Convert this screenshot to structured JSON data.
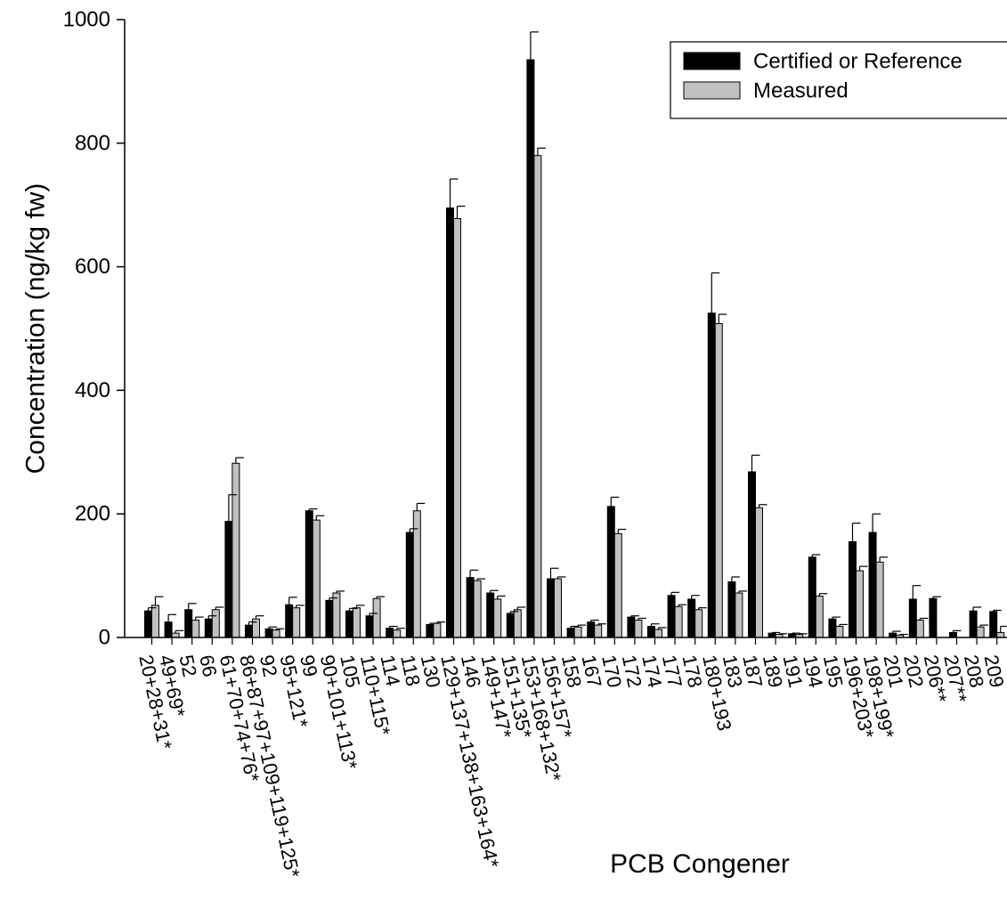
{
  "chart_data": {
    "type": "bar",
    "title": "",
    "xlabel": "PCB Congener",
    "ylabel": "Concentration (ng/kg fw)",
    "ylim": [
      0,
      1000
    ],
    "yticks": [
      0,
      200,
      400,
      600,
      800,
      1000
    ],
    "grid": false,
    "legend_position": "top-right",
    "categories": [
      "20+28+31*",
      "49+69*",
      "52",
      "66",
      "61+70+74+76*",
      "86+87+97+109+119+125*",
      "92",
      "95+121*",
      "99",
      "90+101+113*",
      "105",
      "110+115*",
      "114",
      "118",
      "130",
      "129+137+138+163+164*",
      "146",
      "149+147*",
      "151+135*",
      "153+168+132*",
      "156+157*",
      "158",
      "167",
      "170",
      "172",
      "174",
      "177",
      "178",
      "180+193",
      "183",
      "187",
      "189",
      "191",
      "194",
      "195",
      "196+203*",
      "198+199*",
      "201",
      "202",
      "206**",
      "207**",
      "208",
      "209"
    ],
    "series": [
      {
        "name": "Certified or Reference",
        "color": "#000000",
        "values": [
          43,
          25,
          45,
          30,
          188,
          20,
          14,
          53,
          205,
          60,
          43,
          35,
          15,
          170,
          21,
          695,
          97,
          72,
          39,
          935,
          95,
          15,
          25,
          212,
          33,
          18,
          68,
          62,
          525,
          90,
          268,
          7,
          6,
          130,
          30,
          155,
          170,
          7,
          62,
          63,
          8,
          43,
          42
        ],
        "errors": [
          5,
          12,
          10,
          5,
          43,
          5,
          3,
          12,
          3,
          4,
          4,
          4,
          3,
          6,
          2,
          47,
          12,
          4,
          3,
          45,
          17,
          3,
          3,
          15,
          2,
          4,
          5,
          6,
          65,
          8,
          27,
          1,
          1,
          4,
          3,
          30,
          30,
          3,
          22,
          3,
          3,
          6,
          2
        ]
      },
      {
        "name": "Measured",
        "color": "#c0c0c0",
        "values": [
          52,
          7,
          28,
          45,
          282,
          30,
          12,
          48,
          190,
          72,
          48,
          63,
          12,
          205,
          23,
          678,
          92,
          62,
          45,
          780,
          95,
          17,
          20,
          168,
          28,
          13,
          50,
          45,
          508,
          72,
          210,
          5,
          5,
          67,
          18,
          108,
          122,
          4,
          28,
          0,
          0,
          17,
          8
        ],
        "errors": [
          14,
          4,
          5,
          4,
          9,
          5,
          2,
          4,
          7,
          3,
          4,
          3,
          3,
          12,
          2,
          20,
          3,
          5,
          4,
          12,
          3,
          3,
          2,
          7,
          3,
          3,
          3,
          3,
          15,
          3,
          5,
          1,
          1,
          4,
          3,
          7,
          8,
          1,
          3,
          0,
          0,
          3,
          10
        ]
      }
    ]
  }
}
